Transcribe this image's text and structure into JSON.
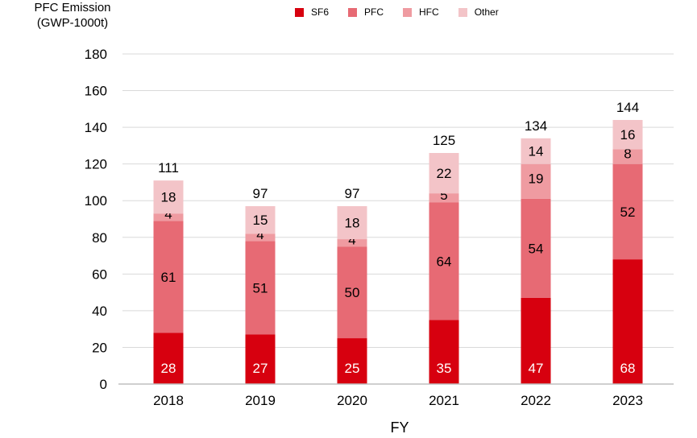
{
  "chart_data": {
    "type": "bar",
    "stacked": true,
    "ylabel_line1": "PFC Emission",
    "ylabel_line2": "(GWP-1000t)",
    "xlabel": "FY",
    "categories": [
      "2018",
      "2019",
      "2020",
      "2021",
      "2022",
      "2023"
    ],
    "ylim": [
      0,
      180
    ],
    "yticks": [
      0,
      20,
      40,
      60,
      80,
      100,
      120,
      140,
      160,
      180
    ],
    "grid": true,
    "legend_position": "top",
    "series": [
      {
        "name": "SF6",
        "color": "#d7000f",
        "label_color": "#ffffff",
        "values": [
          28,
          27,
          25,
          35,
          47,
          68
        ]
      },
      {
        "name": "PFC",
        "color": "#e76a74",
        "label_color": "#000000",
        "values": [
          61,
          51,
          50,
          64,
          54,
          52
        ]
      },
      {
        "name": "HFC",
        "color": "#ef9ba1",
        "label_color": "#000000",
        "values": [
          4,
          4,
          4,
          5,
          19,
          8
        ]
      },
      {
        "name": "Other",
        "color": "#f3c4c8",
        "label_color": "#000000",
        "values": [
          18,
          15,
          18,
          22,
          14,
          16
        ]
      }
    ],
    "totals": [
      111,
      97,
      97,
      125,
      134,
      144
    ]
  }
}
